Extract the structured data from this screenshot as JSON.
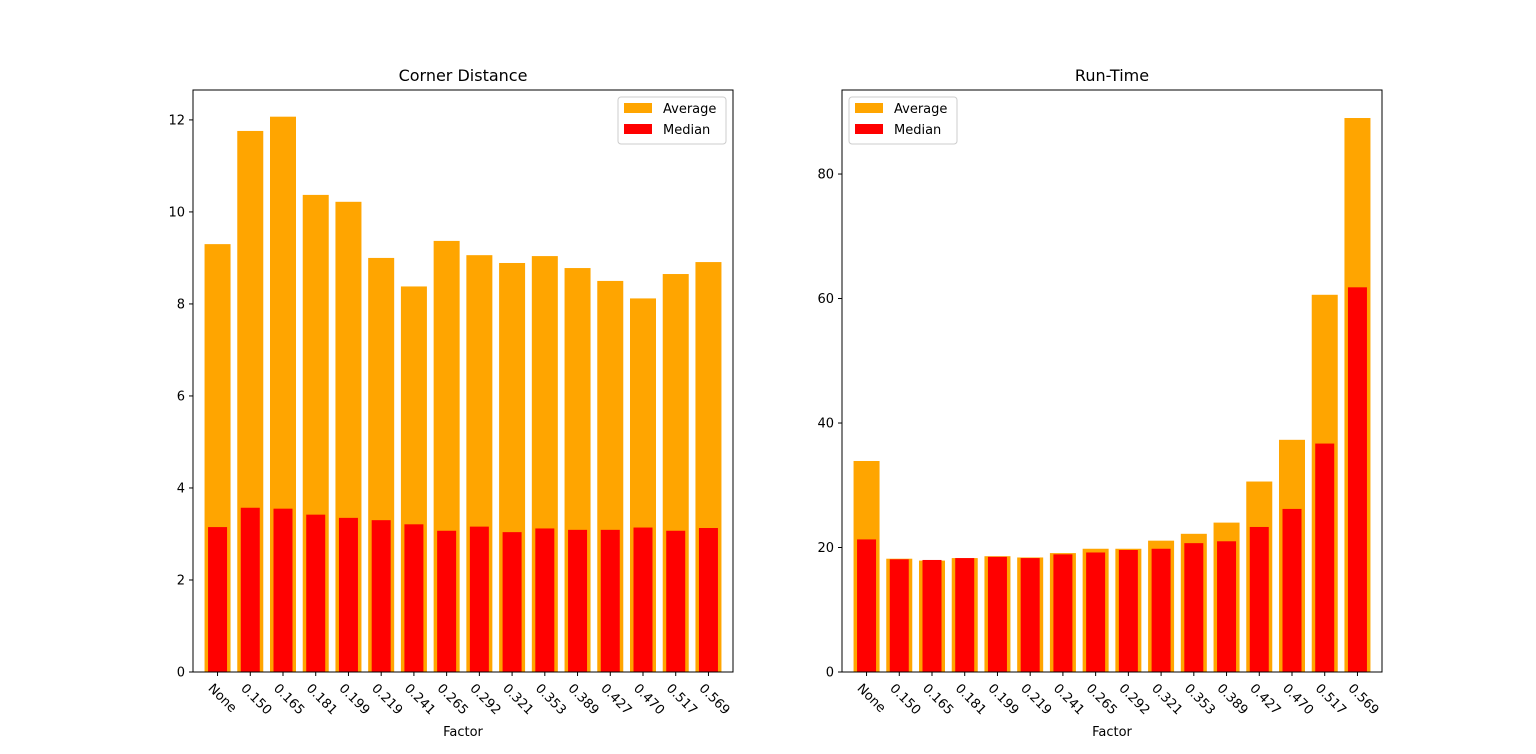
{
  "chart_data": [
    {
      "type": "bar",
      "title": "Corner Distance",
      "xlabel": "Factor",
      "ylabel": "",
      "categories": [
        "None",
        "0.150",
        "0.165",
        "0.181",
        "0.199",
        "0.219",
        "0.241",
        "0.265",
        "0.292",
        "0.321",
        "0.353",
        "0.389",
        "0.427",
        "0.470",
        "0.517",
        "0.569"
      ],
      "series": [
        {
          "name": "Average",
          "color": "#ffa500",
          "values": [
            9.3,
            11.76,
            12.07,
            10.37,
            10.22,
            9.0,
            8.38,
            9.37,
            9.06,
            8.89,
            9.04,
            8.78,
            8.5,
            8.12,
            8.65,
            8.91
          ]
        },
        {
          "name": "Median",
          "color": "#ff0000",
          "values": [
            3.15,
            3.57,
            3.55,
            3.42,
            3.35,
            3.3,
            3.21,
            3.07,
            3.16,
            3.04,
            3.12,
            3.09,
            3.09,
            3.14,
            3.07,
            3.13
          ]
        }
      ],
      "ylim": [
        0,
        12.65
      ],
      "yticks": [
        "0",
        "2",
        "4",
        "6",
        "8",
        "10",
        "12"
      ],
      "legend": "top-right",
      "grid": false
    },
    {
      "type": "bar",
      "title": "Run-Time",
      "xlabel": "Factor",
      "ylabel": "",
      "categories": [
        "None",
        "0.150",
        "0.165",
        "0.181",
        "0.199",
        "0.219",
        "0.241",
        "0.265",
        "0.292",
        "0.321",
        "0.353",
        "0.389",
        "0.427",
        "0.470",
        "0.517",
        "0.569"
      ],
      "series": [
        {
          "name": "Average",
          "color": "#ffa500",
          "values": [
            33.9,
            18.2,
            17.9,
            18.3,
            18.6,
            18.4,
            19.1,
            19.8,
            19.8,
            21.1,
            22.2,
            24.0,
            30.6,
            37.3,
            60.6,
            89.0
          ]
        },
        {
          "name": "Median",
          "color": "#ff0000",
          "values": [
            21.3,
            18.1,
            18.0,
            18.3,
            18.5,
            18.3,
            18.9,
            19.2,
            19.6,
            19.8,
            20.7,
            21.0,
            23.3,
            26.2,
            36.7,
            61.8
          ]
        }
      ],
      "ylim": [
        0,
        93.5
      ],
      "yticks": [
        "0",
        "20",
        "40",
        "60",
        "80"
      ],
      "legend": "top-left",
      "grid": false
    }
  ]
}
